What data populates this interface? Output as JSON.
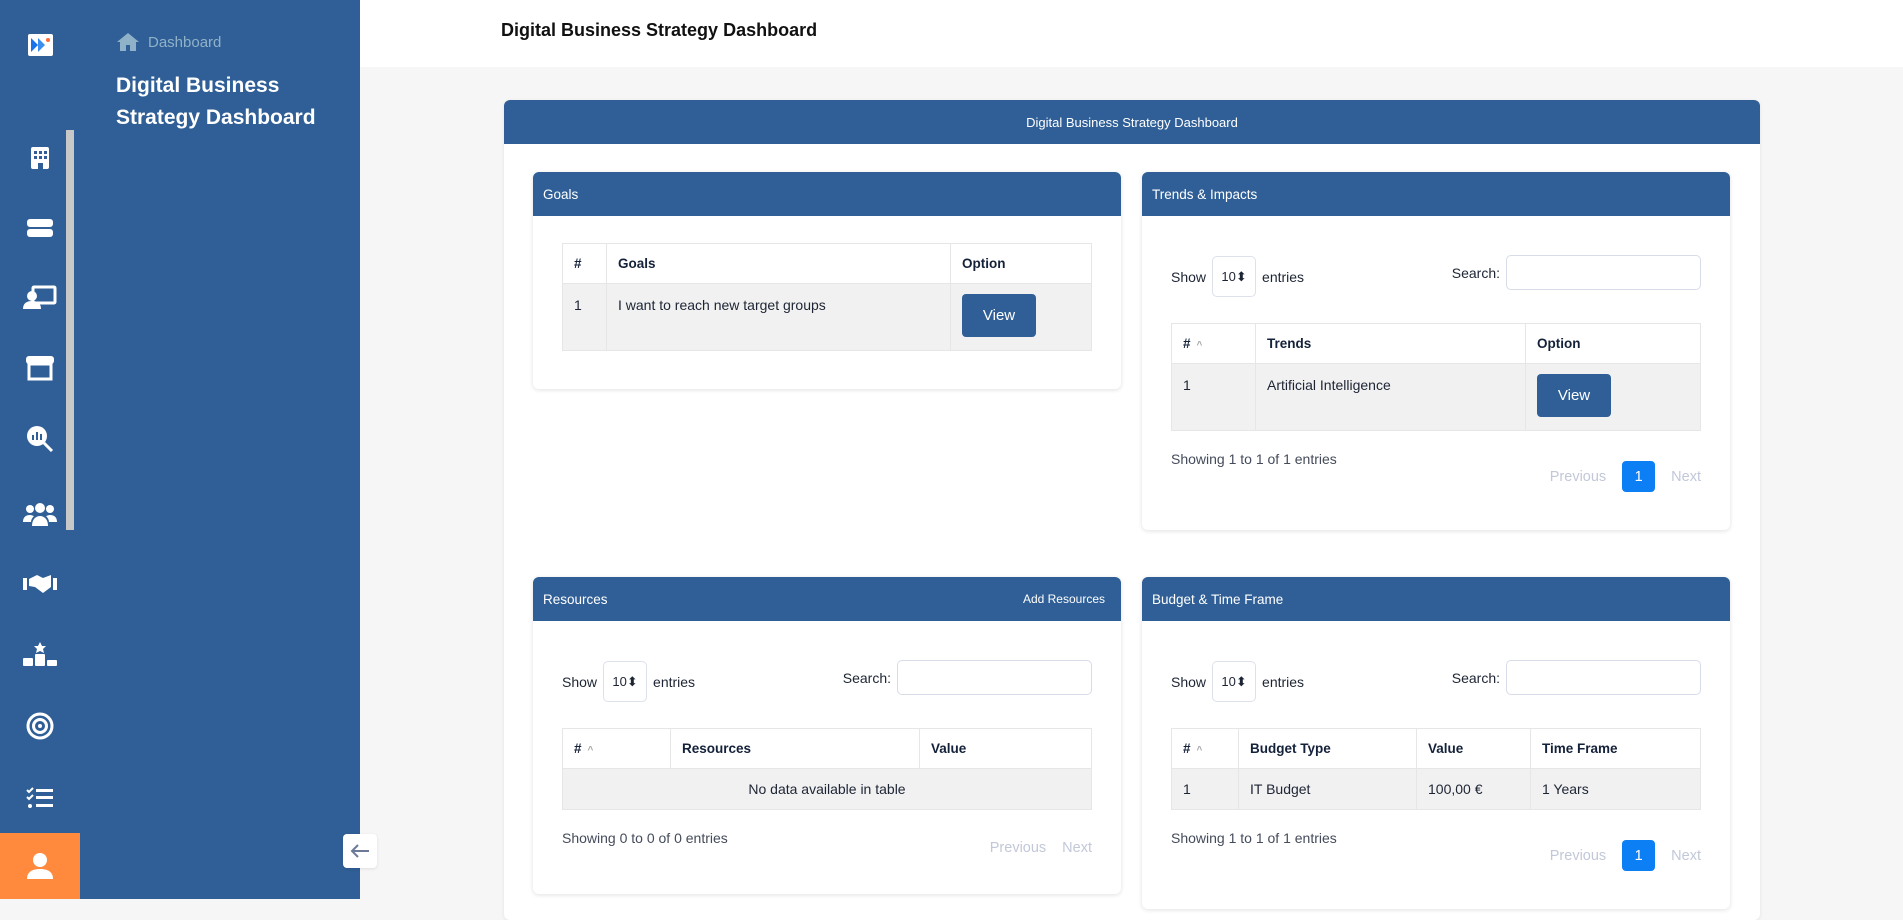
{
  "breadcrumb": {
    "label": "Dashboard"
  },
  "sidebar": {
    "title": "Digital Business Strategy Dashboard",
    "icons": [
      "building-icon",
      "server-icon",
      "presentation-icon",
      "store-icon",
      "analytics-search-icon",
      "users-icon",
      "handshake-icon",
      "ranking-icon",
      "target-icon",
      "checklist-icon",
      "user-icon"
    ]
  },
  "header": {
    "title": "Digital Business Strategy Dashboard"
  },
  "main": {
    "title": "Digital Business Strategy Dashboard"
  },
  "goals": {
    "title": "Goals",
    "columns": [
      "#",
      "Goals",
      "Option"
    ],
    "rows": [
      {
        "n": "1",
        "goal": "I want to reach new target groups",
        "action": "View"
      }
    ]
  },
  "trends": {
    "title": "Trends & Impacts",
    "show": "Show",
    "length": "10",
    "entries": "entries",
    "search": "Search:",
    "columns": [
      "#",
      "Trends",
      "Option"
    ],
    "rows": [
      {
        "n": "1",
        "trend": "Artificial Intelligence",
        "action": "View"
      }
    ],
    "info": "Showing 1 to 1 of 1 entries",
    "prev": "Previous",
    "page": "1",
    "next": "Next"
  },
  "resources": {
    "title": "Resources",
    "add": "Add Resources",
    "show": "Show",
    "length": "10",
    "entries": "entries",
    "search": "Search:",
    "columns": [
      "#",
      "Resources",
      "Value"
    ],
    "empty": "No data available in table",
    "info": "Showing 0 to 0 of 0 entries",
    "prev": "Previous",
    "next": "Next"
  },
  "budget": {
    "title": "Budget & Time Frame",
    "show": "Show",
    "length": "10",
    "entries": "entries",
    "search": "Search:",
    "columns": [
      "#",
      "Budget Type",
      "Value",
      "Time Frame"
    ],
    "rows": [
      {
        "n": "1",
        "type": "IT Budget",
        "value": "100,00 €",
        "time": "1 Years"
      }
    ],
    "info": "Showing 1 to 1 of 1 entries",
    "prev": "Previous",
    "page": "1",
    "next": "Next"
  },
  "colors": {
    "primary": "#2f5f96",
    "accent": "#ff8a3d",
    "page_active": "#0d7ff5"
  }
}
